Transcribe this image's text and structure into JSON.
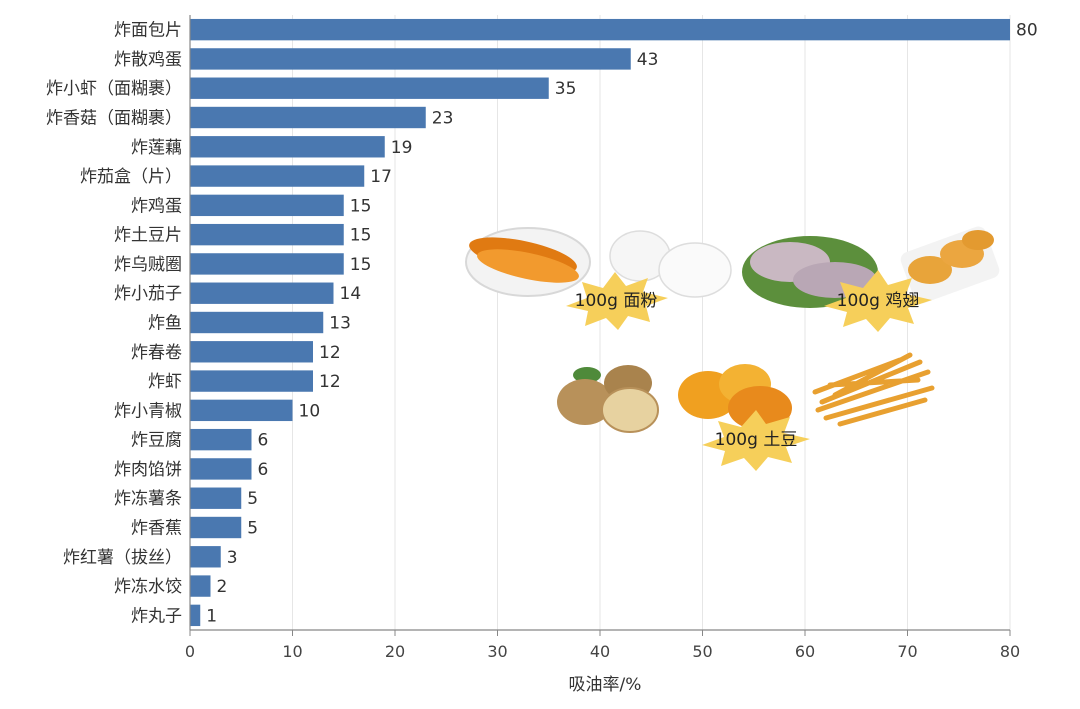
{
  "chart_data": {
    "type": "bar",
    "orientation": "horizontal",
    "categories": [
      "炸面包片",
      "炸散鸡蛋",
      "炸小虾（面糊裹）",
      "炸香菇（面糊裹）",
      "炸莲藕",
      "炸茄盒（片）",
      "炸鸡蛋",
      "炸土豆片",
      "炸乌贼圈",
      "炸小茄子",
      "炸鱼",
      "炸春卷",
      "炸虾",
      "炸小青椒",
      "炸豆腐",
      "炸肉馅饼",
      "炸冻薯条",
      "炸香蕉",
      "炸红薯（拔丝）",
      "炸冻水饺",
      "炸丸子"
    ],
    "values": [
      80,
      43,
      35,
      23,
      19,
      17,
      15,
      15,
      15,
      14,
      13,
      12,
      12,
      10,
      6,
      6,
      5,
      5,
      3,
      2,
      1
    ],
    "xlabel": "吸油率/%",
    "xlim": [
      0,
      80
    ],
    "xticks": [
      0,
      10,
      20,
      30,
      40,
      50,
      60,
      70,
      80
    ],
    "bar_color": "#4a78b0",
    "grid": true
  },
  "photo_labels": {
    "flour": "100g 面粉",
    "wings": "100g 鸡翅",
    "potato": "100g 土豆"
  },
  "colors": {
    "burst": "#f6cf5a",
    "food_orange": "#e88a1c"
  }
}
